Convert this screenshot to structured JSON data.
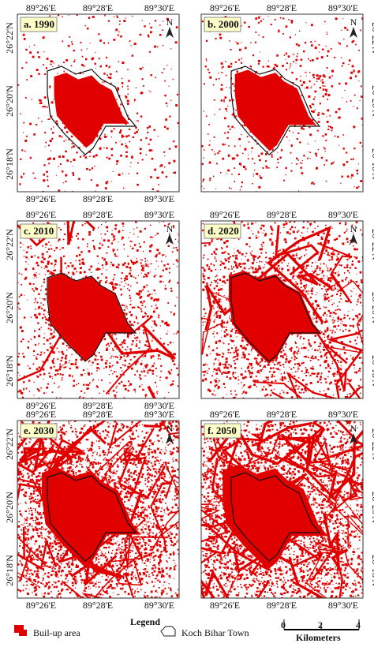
{
  "panels": [
    {
      "label": "a. 1990"
    },
    {
      "label": "b. 2000"
    },
    {
      "label": "c. 2010"
    },
    {
      "label": "d. 2020"
    },
    {
      "label": "e. 2030"
    },
    {
      "label": "f. 2050"
    }
  ],
  "lon_ticks": [
    "89°26'E",
    "89°28'E",
    "89°30'E"
  ],
  "lat_ticks": [
    "26°22'N",
    "26°20'N",
    "26°18'N"
  ],
  "north": "N",
  "legend": {
    "title": "Legend",
    "items": [
      "Buil-up area",
      "Koch Bihar Town"
    ]
  },
  "scale": {
    "ticks": [
      "0",
      "2",
      "4"
    ],
    "unit": "Kilometers"
  }
}
